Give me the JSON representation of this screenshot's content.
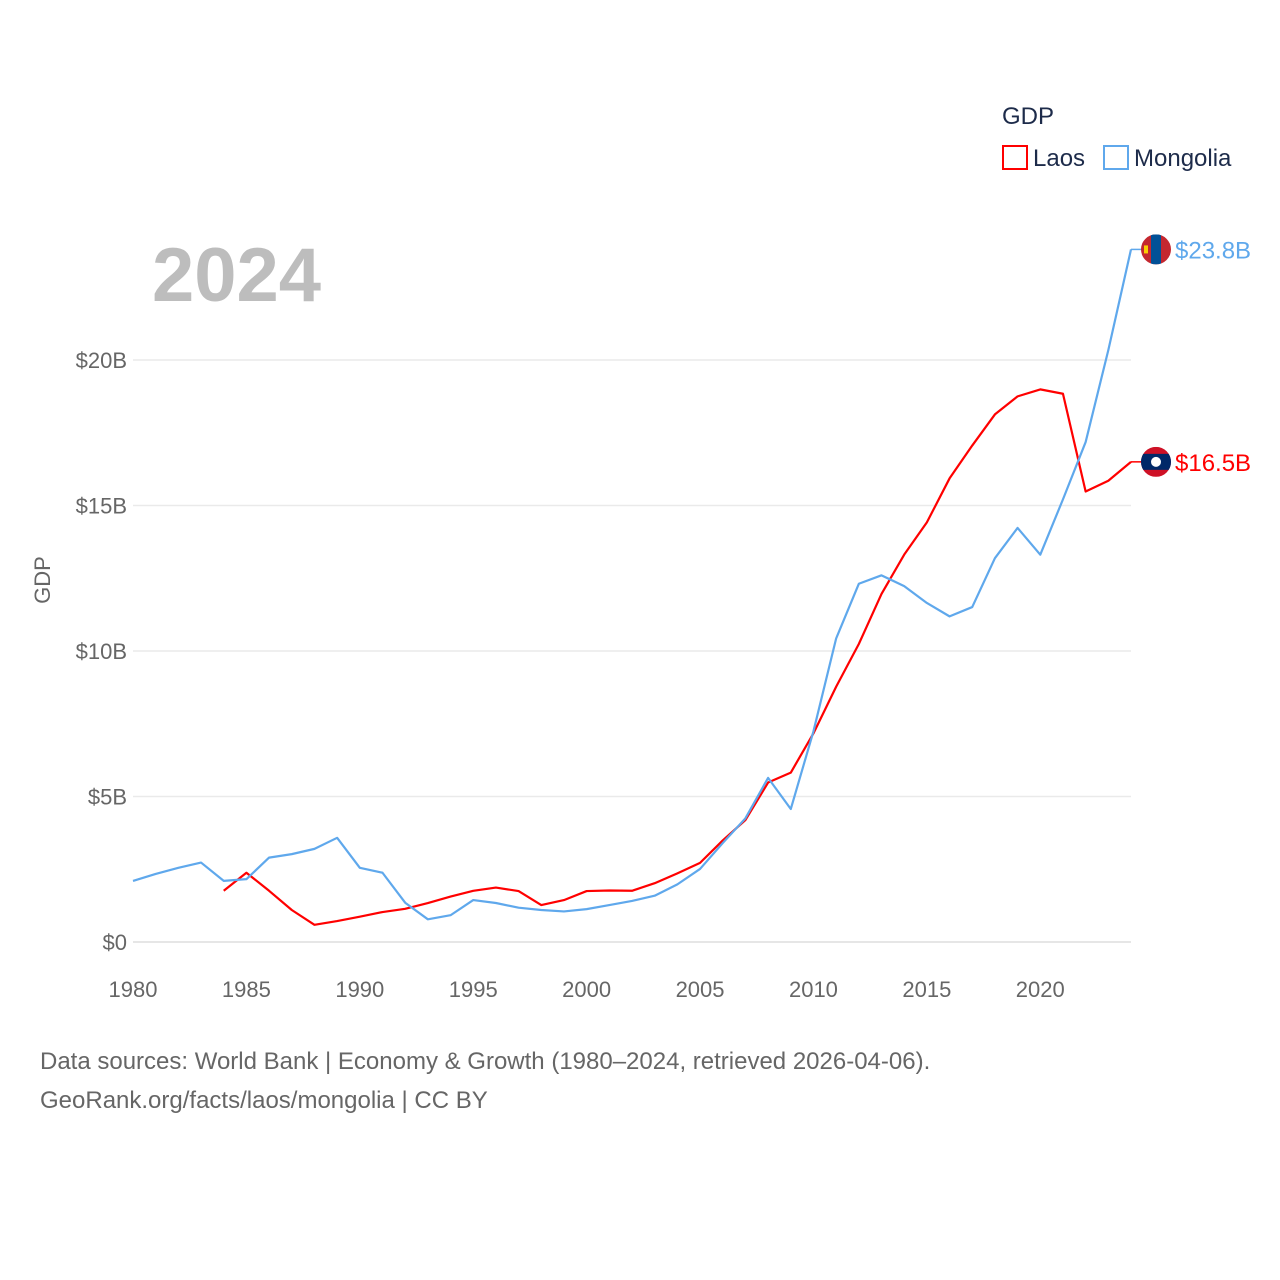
{
  "chart_data": {
    "type": "line",
    "title_year": "2024",
    "ylabel": "GDP",
    "xlabel": "",
    "ylim": [
      0,
      24
    ],
    "xlim": [
      1980,
      2024
    ],
    "grid": true,
    "y_ticks": [
      {
        "value": 0,
        "label": "$0"
      },
      {
        "value": 5,
        "label": "$5B"
      },
      {
        "value": 10,
        "label": "$10B"
      },
      {
        "value": 15,
        "label": "$15B"
      },
      {
        "value": 20,
        "label": "$20B"
      }
    ],
    "x_ticks": [
      "1980",
      "1985",
      "1990",
      "1995",
      "2000",
      "2005",
      "2010",
      "2015",
      "2020"
    ],
    "legend": {
      "title": "GDP",
      "placement": "top-right"
    },
    "series": [
      {
        "name": "Laos",
        "color": "#ff0000",
        "end_label": "$16.5B",
        "start_year": 1984,
        "values": [
          1.76,
          2.38,
          1.76,
          1.1,
          0.59,
          0.72,
          0.87,
          1.03,
          1.14,
          1.34,
          1.56,
          1.76,
          1.87,
          1.75,
          1.27,
          1.44,
          1.75,
          1.77,
          1.76,
          2.02,
          2.36,
          2.72,
          3.49,
          4.19,
          5.48,
          5.82,
          7.17,
          8.77,
          10.24,
          11.96,
          13.31,
          14.42,
          15.93,
          17.06,
          18.13,
          18.75,
          18.99,
          18.84,
          15.48,
          15.85,
          16.5
        ]
      },
      {
        "name": "Mongolia",
        "color": "#5fa8ec",
        "end_label": "$23.8B",
        "start_year": 1980,
        "values": [
          2.1,
          2.34,
          2.55,
          2.73,
          2.1,
          2.16,
          2.9,
          3.02,
          3.2,
          3.58,
          2.55,
          2.38,
          1.35,
          0.78,
          0.92,
          1.44,
          1.34,
          1.18,
          1.1,
          1.05,
          1.13,
          1.27,
          1.41,
          1.59,
          1.98,
          2.51,
          3.4,
          4.25,
          5.64,
          4.57,
          7.24,
          10.43,
          12.31,
          12.6,
          12.23,
          11.65,
          11.19,
          11.51,
          13.19,
          14.23,
          13.31,
          15.21,
          17.18,
          20.34,
          23.8
        ]
      }
    ]
  },
  "footer": {
    "line1": "Data sources: World Bank | Economy & Growth (1980–2024, retrieved 2026-04-06).",
    "line2": "GeoRank.org/facts/laos/mongolia | CC BY"
  }
}
